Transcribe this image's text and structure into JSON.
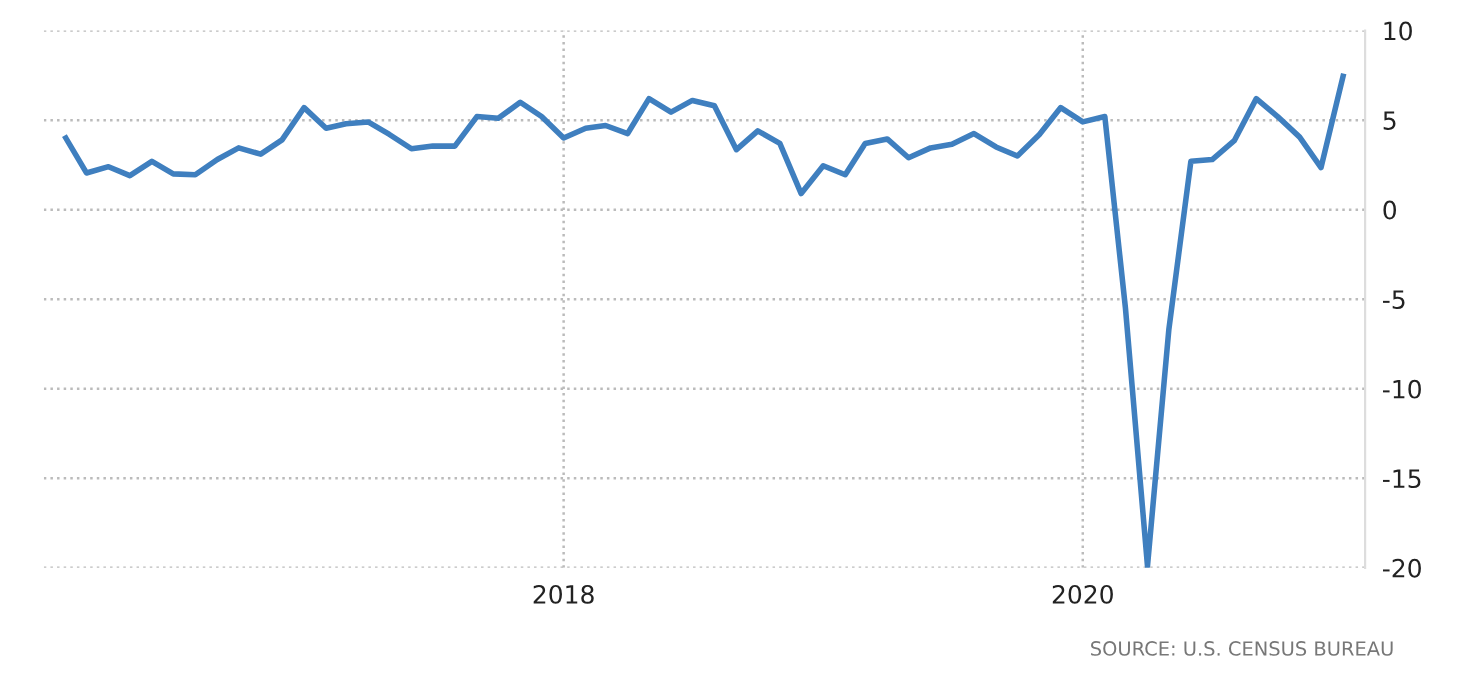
{
  "chart_data": {
    "type": "line",
    "x": [
      "2016-02",
      "2016-03",
      "2016-04",
      "2016-05",
      "2016-06",
      "2016-07",
      "2016-08",
      "2016-09",
      "2016-10",
      "2016-11",
      "2016-12",
      "2017-01",
      "2017-02",
      "2017-03",
      "2017-04",
      "2017-05",
      "2017-06",
      "2017-07",
      "2017-08",
      "2017-09",
      "2017-10",
      "2017-11",
      "2017-12",
      "2018-01",
      "2018-02",
      "2018-03",
      "2018-04",
      "2018-05",
      "2018-06",
      "2018-07",
      "2018-08",
      "2018-09",
      "2018-10",
      "2018-11",
      "2018-12",
      "2019-01",
      "2019-02",
      "2019-03",
      "2019-04",
      "2019-05",
      "2019-06",
      "2019-07",
      "2019-08",
      "2019-09",
      "2019-10",
      "2019-11",
      "2019-12",
      "2020-01",
      "2020-02",
      "2020-03",
      "2020-04",
      "2020-05",
      "2020-06",
      "2020-07",
      "2020-08",
      "2020-09",
      "2020-10",
      "2020-11",
      "2020-12",
      "2021-01"
    ],
    "series": [
      {
        "color": "#3f7fbf",
        "values": [
          4.0,
          2.05,
          2.4,
          1.9,
          2.7,
          2.0,
          1.95,
          2.8,
          3.45,
          3.1,
          3.9,
          5.7,
          4.55,
          4.8,
          4.9,
          4.2,
          3.4,
          3.55,
          3.55,
          5.2,
          5.1,
          6.0,
          5.2,
          4.0,
          4.55,
          4.7,
          4.25,
          6.2,
          5.45,
          6.1,
          5.8,
          3.35,
          4.4,
          3.7,
          0.9,
          2.45,
          1.95,
          3.7,
          3.95,
          2.9,
          3.45,
          3.65,
          4.25,
          3.5,
          3.0,
          4.2,
          5.7,
          4.9,
          5.2,
          -5.5,
          -19.9,
          -6.7,
          2.7,
          2.8,
          3.85,
          6.2,
          5.2,
          4.05,
          2.35,
          7.45
        ]
      }
    ],
    "xlim": [
      "2016-01",
      "2021-02"
    ],
    "xticks": [
      "2018",
      "2020"
    ],
    "ylim": [
      -20,
      10
    ],
    "yticks": [
      -20,
      -15,
      -10,
      -5,
      0,
      5,
      10
    ],
    "grid": true,
    "line_style": "solid",
    "annotations": [
      "SOURCE: U.S. CENSUS BUREAU"
    ]
  }
}
